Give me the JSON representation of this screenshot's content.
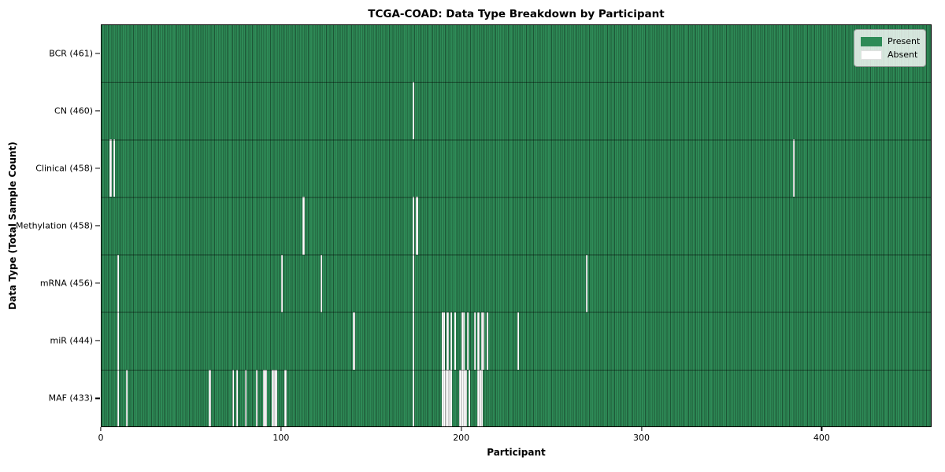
{
  "title": "TCGA-COAD: Data Type Breakdown by Participant",
  "xlabel": "Participant",
  "ylabel": "Data Type (Total Sample Count)",
  "legend": {
    "present_label": "Present",
    "absent_label": "Absent"
  },
  "colors": {
    "present": "#2e8b57",
    "absent": "#ffffff",
    "cell_edge": "#17432b",
    "plot_border": "#000000"
  },
  "chart_data": {
    "type": "heatmap",
    "title": "TCGA-COAD: Data Type Breakdown by Participant",
    "xlabel": "Participant",
    "ylabel": "Data Type (Total Sample Count)",
    "legend": [
      "Present",
      "Absent"
    ],
    "legend_position": "upper right",
    "n_participants": 461,
    "xlim": [
      0,
      461
    ],
    "x_ticks": [
      0,
      100,
      200,
      300,
      400
    ],
    "rows": [
      {
        "label": "BCR (461)",
        "data_type": "BCR",
        "present_count": 461,
        "absent_participants": []
      },
      {
        "label": "CN (460)",
        "data_type": "CN",
        "present_count": 460,
        "absent_participants": [
          173
        ]
      },
      {
        "label": "Clinical (458)",
        "data_type": "Clinical",
        "present_count": 458,
        "absent_participants": [
          5,
          7,
          384
        ]
      },
      {
        "label": "Methylation (458)",
        "data_type": "Methylation",
        "present_count": 458,
        "absent_participants": [
          112,
          173,
          175
        ]
      },
      {
        "label": "mRNA (456)",
        "data_type": "mRNA",
        "present_count": 456,
        "absent_participants": [
          9,
          100,
          122,
          173,
          269
        ]
      },
      {
        "label": "miR (444)",
        "data_type": "miR",
        "present_count": 444,
        "absent_participants": [
          9,
          140,
          173,
          189,
          190,
          192,
          194,
          196,
          200,
          201,
          203,
          207,
          209,
          211,
          212,
          214,
          231
        ]
      },
      {
        "label": "MAF (433)",
        "data_type": "MAF",
        "present_count": 433,
        "absent_participants": [
          9,
          14,
          60,
          73,
          75,
          80,
          86,
          90,
          91,
          95,
          96,
          97,
          102,
          173,
          189,
          190,
          191,
          192,
          193,
          194,
          199,
          200,
          201,
          202,
          204,
          209,
          210,
          211
        ]
      }
    ]
  }
}
